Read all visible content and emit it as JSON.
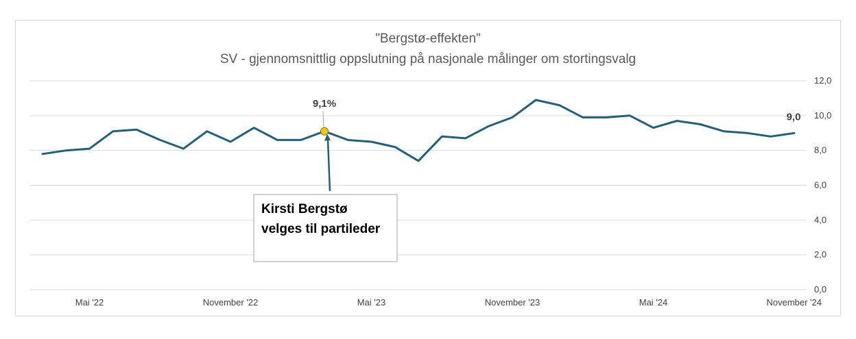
{
  "chart_data": {
    "type": "line",
    "title": "\"Bergstø-effekten\"",
    "subtitle": "SV - gjennomsnittlig oppslutning på nasjonale målinger om stortingsvalg",
    "x_tick_labels": [
      "Mai '22",
      "November '22",
      "Mai '23",
      "November '23",
      "Mai '24",
      "November '24"
    ],
    "y_tick_labels": [
      "12,0",
      "10,0",
      "8,0",
      "6,0",
      "4,0",
      "2,0",
      "0,0"
    ],
    "ylim": [
      0,
      12
    ],
    "grid": true,
    "series": [
      {
        "values": [
          7.8,
          8.0,
          8.1,
          9.1,
          9.2,
          8.6,
          8.1,
          9.1,
          8.5,
          9.3,
          8.6,
          8.6,
          9.1,
          8.6,
          8.5,
          8.2,
          7.4,
          8.8,
          8.7,
          9.4,
          9.9,
          10.9,
          10.6,
          9.9,
          9.9,
          10.0,
          9.3,
          9.7,
          9.5,
          9.1,
          9.0,
          8.8,
          9.0
        ],
        "color": "#1f5f7f"
      }
    ],
    "data_labels": [
      {
        "index": 12,
        "text": "9,1%"
      },
      {
        "index": 32,
        "text": "9,0"
      }
    ],
    "highlight_point_index": 12,
    "highlight_color": "#f2c811",
    "annotation": {
      "point_index": 12,
      "lines": [
        "Kirsti Bergstø",
        "velges til partileder"
      ]
    }
  }
}
